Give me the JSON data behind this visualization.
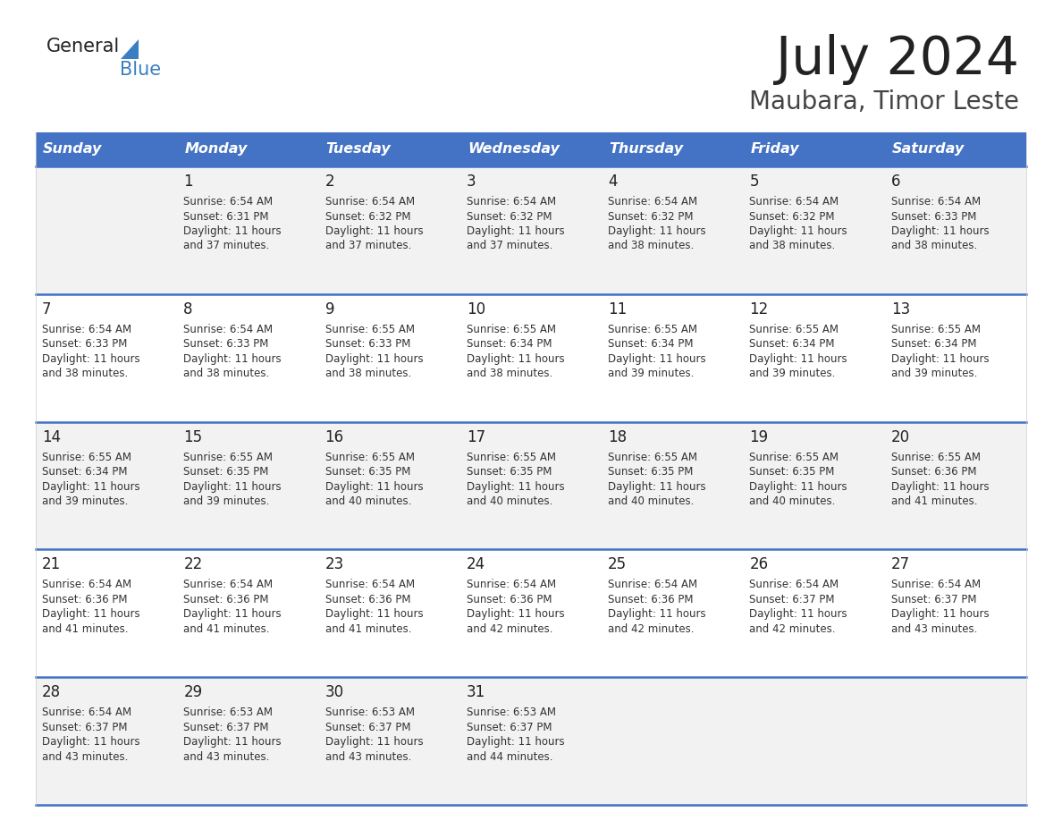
{
  "title": "July 2024",
  "subtitle": "Maubara, Timor Leste",
  "header_color": "#4472C4",
  "header_text_color": "#FFFFFF",
  "background_color": "#FFFFFF",
  "cell_bg_light": "#F2F2F2",
  "cell_bg_white": "#FFFFFF",
  "day_headers": [
    "Sunday",
    "Monday",
    "Tuesday",
    "Wednesday",
    "Thursday",
    "Friday",
    "Saturday"
  ],
  "title_color": "#222222",
  "subtitle_color": "#444444",
  "logo_black": "#222222",
  "logo_blue": "#3A7FC1",
  "separator_color": "#4472C4",
  "weeks": [
    [
      null,
      1,
      2,
      3,
      4,
      5,
      6
    ],
    [
      7,
      8,
      9,
      10,
      11,
      12,
      13
    ],
    [
      14,
      15,
      16,
      17,
      18,
      19,
      20
    ],
    [
      21,
      22,
      23,
      24,
      25,
      26,
      27
    ],
    [
      28,
      29,
      30,
      31,
      null,
      null,
      null
    ]
  ],
  "days": {
    "1": {
      "sunrise": "6:54 AM",
      "sunset": "6:31 PM",
      "daylight": "11 hours",
      "daylight2": "and 37 minutes."
    },
    "2": {
      "sunrise": "6:54 AM",
      "sunset": "6:32 PM",
      "daylight": "11 hours",
      "daylight2": "and 37 minutes."
    },
    "3": {
      "sunrise": "6:54 AM",
      "sunset": "6:32 PM",
      "daylight": "11 hours",
      "daylight2": "and 37 minutes."
    },
    "4": {
      "sunrise": "6:54 AM",
      "sunset": "6:32 PM",
      "daylight": "11 hours",
      "daylight2": "and 38 minutes."
    },
    "5": {
      "sunrise": "6:54 AM",
      "sunset": "6:32 PM",
      "daylight": "11 hours",
      "daylight2": "and 38 minutes."
    },
    "6": {
      "sunrise": "6:54 AM",
      "sunset": "6:33 PM",
      "daylight": "11 hours",
      "daylight2": "and 38 minutes."
    },
    "7": {
      "sunrise": "6:54 AM",
      "sunset": "6:33 PM",
      "daylight": "11 hours",
      "daylight2": "and 38 minutes."
    },
    "8": {
      "sunrise": "6:54 AM",
      "sunset": "6:33 PM",
      "daylight": "11 hours",
      "daylight2": "and 38 minutes."
    },
    "9": {
      "sunrise": "6:55 AM",
      "sunset": "6:33 PM",
      "daylight": "11 hours",
      "daylight2": "and 38 minutes."
    },
    "10": {
      "sunrise": "6:55 AM",
      "sunset": "6:34 PM",
      "daylight": "11 hours",
      "daylight2": "and 38 minutes."
    },
    "11": {
      "sunrise": "6:55 AM",
      "sunset": "6:34 PM",
      "daylight": "11 hours",
      "daylight2": "and 39 minutes."
    },
    "12": {
      "sunrise": "6:55 AM",
      "sunset": "6:34 PM",
      "daylight": "11 hours",
      "daylight2": "and 39 minutes."
    },
    "13": {
      "sunrise": "6:55 AM",
      "sunset": "6:34 PM",
      "daylight": "11 hours",
      "daylight2": "and 39 minutes."
    },
    "14": {
      "sunrise": "6:55 AM",
      "sunset": "6:34 PM",
      "daylight": "11 hours",
      "daylight2": "and 39 minutes."
    },
    "15": {
      "sunrise": "6:55 AM",
      "sunset": "6:35 PM",
      "daylight": "11 hours",
      "daylight2": "and 39 minutes."
    },
    "16": {
      "sunrise": "6:55 AM",
      "sunset": "6:35 PM",
      "daylight": "11 hours",
      "daylight2": "and 40 minutes."
    },
    "17": {
      "sunrise": "6:55 AM",
      "sunset": "6:35 PM",
      "daylight": "11 hours",
      "daylight2": "and 40 minutes."
    },
    "18": {
      "sunrise": "6:55 AM",
      "sunset": "6:35 PM",
      "daylight": "11 hours",
      "daylight2": "and 40 minutes."
    },
    "19": {
      "sunrise": "6:55 AM",
      "sunset": "6:35 PM",
      "daylight": "11 hours",
      "daylight2": "and 40 minutes."
    },
    "20": {
      "sunrise": "6:55 AM",
      "sunset": "6:36 PM",
      "daylight": "11 hours",
      "daylight2": "and 41 minutes."
    },
    "21": {
      "sunrise": "6:54 AM",
      "sunset": "6:36 PM",
      "daylight": "11 hours",
      "daylight2": "and 41 minutes."
    },
    "22": {
      "sunrise": "6:54 AM",
      "sunset": "6:36 PM",
      "daylight": "11 hours",
      "daylight2": "and 41 minutes."
    },
    "23": {
      "sunrise": "6:54 AM",
      "sunset": "6:36 PM",
      "daylight": "11 hours",
      "daylight2": "and 41 minutes."
    },
    "24": {
      "sunrise": "6:54 AM",
      "sunset": "6:36 PM",
      "daylight": "11 hours",
      "daylight2": "and 42 minutes."
    },
    "25": {
      "sunrise": "6:54 AM",
      "sunset": "6:36 PM",
      "daylight": "11 hours",
      "daylight2": "and 42 minutes."
    },
    "26": {
      "sunrise": "6:54 AM",
      "sunset": "6:37 PM",
      "daylight": "11 hours",
      "daylight2": "and 42 minutes."
    },
    "27": {
      "sunrise": "6:54 AM",
      "sunset": "6:37 PM",
      "daylight": "11 hours",
      "daylight2": "and 43 minutes."
    },
    "28": {
      "sunrise": "6:54 AM",
      "sunset": "6:37 PM",
      "daylight": "11 hours",
      "daylight2": "and 43 minutes."
    },
    "29": {
      "sunrise": "6:53 AM",
      "sunset": "6:37 PM",
      "daylight": "11 hours",
      "daylight2": "and 43 minutes."
    },
    "30": {
      "sunrise": "6:53 AM",
      "sunset": "6:37 PM",
      "daylight": "11 hours",
      "daylight2": "and 43 minutes."
    },
    "31": {
      "sunrise": "6:53 AM",
      "sunset": "6:37 PM",
      "daylight": "11 hours",
      "daylight2": "and 44 minutes."
    }
  }
}
